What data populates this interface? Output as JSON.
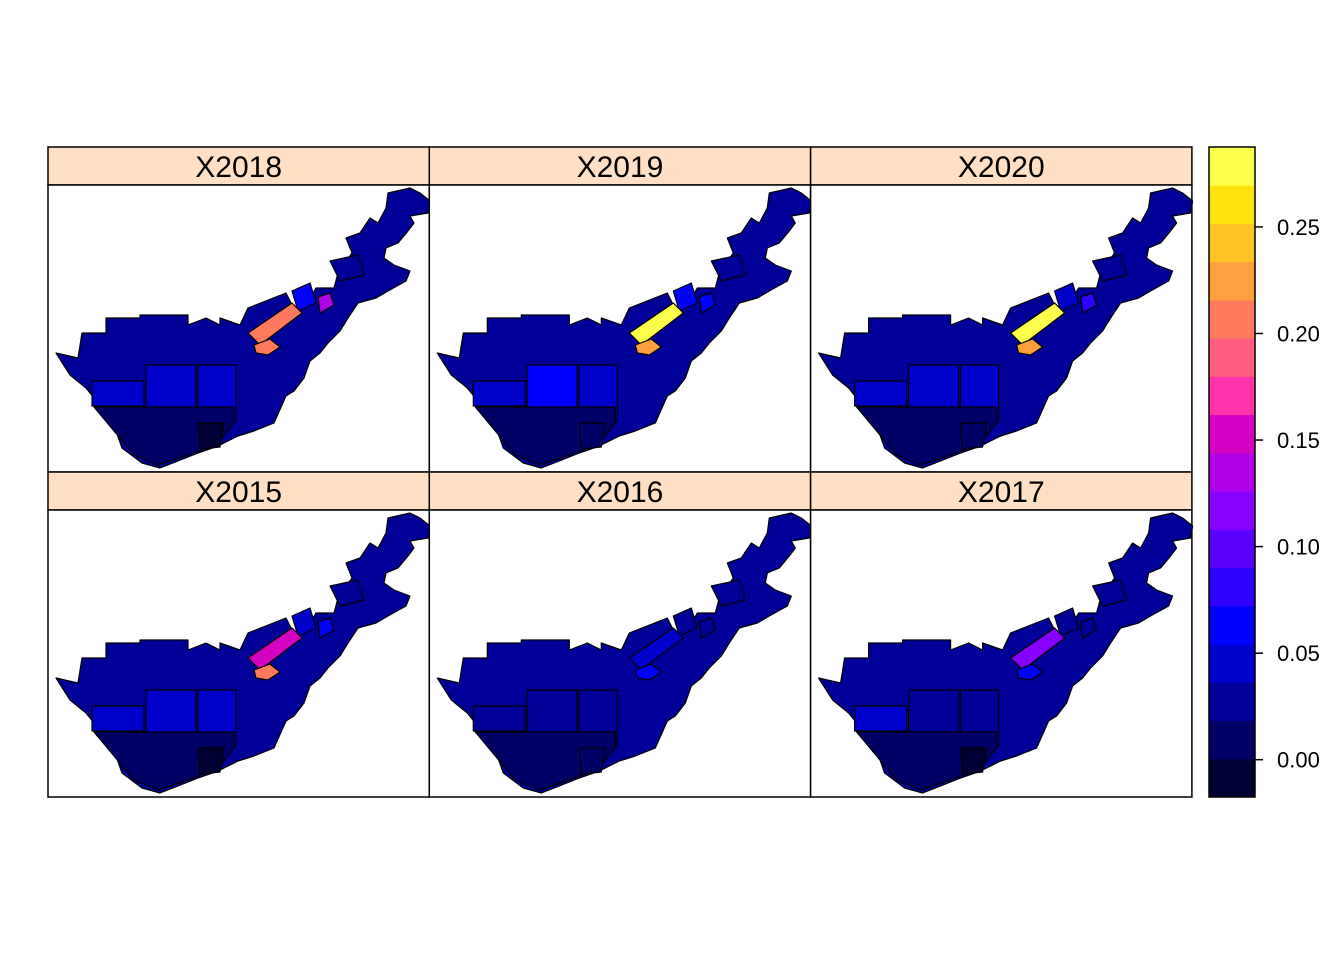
{
  "chart_data": {
    "type": "choropleth-map-panels",
    "layout": {
      "columns": 3,
      "rows": 2
    },
    "panels": [
      {
        "title": "X2018",
        "hot_strip": 0.2,
        "hot_patch": 0.21,
        "side": 0.13,
        "east": 0.06,
        "big_center": 0.05,
        "left": 0.05,
        "right_box": 0.04,
        "fill_west": 0.02,
        "south": 0.01,
        "south_box": 0.0,
        "north": 0.02
      },
      {
        "title": "X2019",
        "hot_strip": 0.27,
        "hot_patch": 0.22,
        "side": 0.07,
        "east": 0.06,
        "big_center": 0.07,
        "left": 0.05,
        "right_box": 0.05,
        "fill_west": 0.02,
        "south": 0.01,
        "south_box": 0.01,
        "north": 0.02
      },
      {
        "title": "X2020",
        "hot_strip": 0.27,
        "hot_patch": 0.22,
        "side": 0.09,
        "east": 0.04,
        "big_center": 0.05,
        "left": 0.04,
        "right_box": 0.05,
        "fill_west": 0.02,
        "south": 0.01,
        "south_box": 0.01,
        "north": 0.02
      },
      {
        "title": "X2015",
        "hot_strip": 0.15,
        "hot_patch": 0.21,
        "side": 0.06,
        "east": 0.05,
        "big_center": 0.05,
        "left": 0.04,
        "right_box": 0.04,
        "fill_west": 0.02,
        "south": 0.01,
        "south_box": 0.0,
        "north": 0.02
      },
      {
        "title": "X2016",
        "hot_strip": 0.05,
        "hot_patch": 0.06,
        "side": 0.03,
        "east": 0.03,
        "big_center": 0.03,
        "left": 0.02,
        "right_box": 0.03,
        "fill_west": 0.02,
        "south": 0.01,
        "south_box": 0.01,
        "north": 0.02
      },
      {
        "title": "X2017",
        "hot_strip": 0.11,
        "hot_patch": 0.06,
        "side": 0.03,
        "east": 0.03,
        "big_center": 0.02,
        "left": 0.04,
        "right_box": 0.02,
        "fill_west": 0.02,
        "south": 0.01,
        "south_box": 0.0,
        "north": 0.02
      }
    ],
    "colorkey": {
      "min": -0.0175,
      "max": 0.2875,
      "ticks": [
        0.0,
        0.05,
        0.1,
        0.15,
        0.2,
        0.25
      ],
      "tick_labels": [
        "0.00",
        "0.05",
        "0.10",
        "0.15",
        "0.20",
        "0.25"
      ],
      "colors": [
        "#000033",
        "#000066",
        "#000099",
        "#0000CC",
        "#0000FF",
        "#2D00FF",
        "#5B00FF",
        "#8700FF",
        "#B000E6",
        "#D600C2",
        "#FF33AA",
        "#FF5C80",
        "#FF7A5C",
        "#FFA040",
        "#FFC326",
        "#FFE30F",
        "#FFFF4D"
      ]
    },
    "strip_color": "#FFE0C4",
    "background": "#ffffff"
  }
}
